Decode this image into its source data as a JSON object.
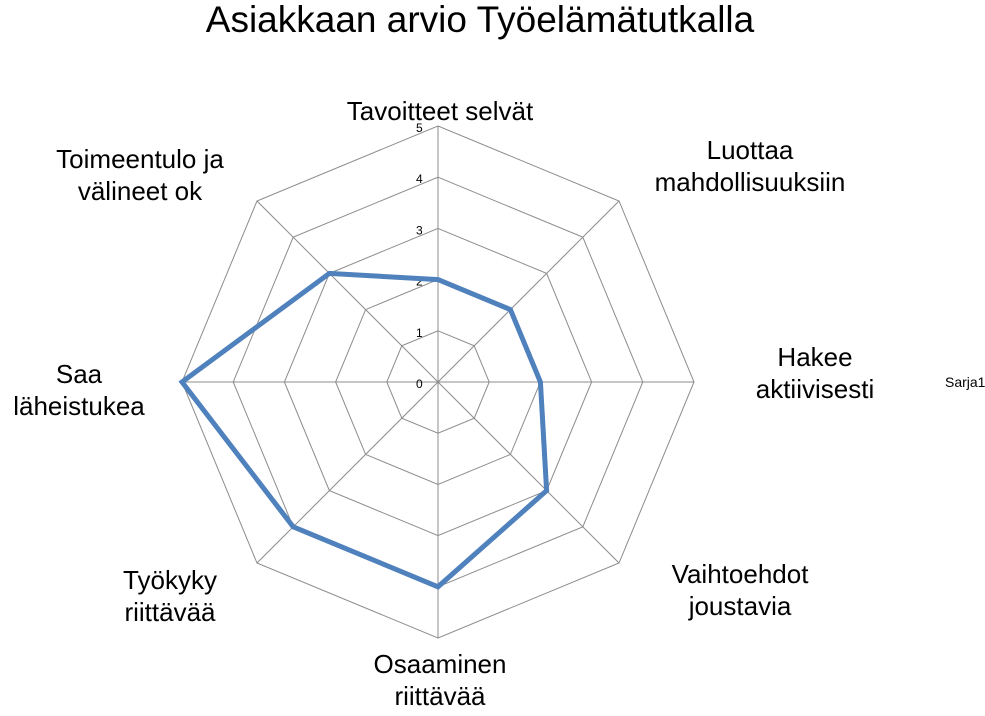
{
  "chart_data": {
    "type": "radar",
    "title": "Asiakkaan arvio Työelämätutkalla",
    "categories": [
      "Tavoitteet selvät",
      "Luottaa mahdollisuuksiin",
      "Hakee aktiivisesti",
      "Vaihtoehdot joustavia",
      "Osaaminen riittävää",
      "Työkyky riittävää",
      "Saa läheistukea",
      "Toimeentulo ja välineet ok"
    ],
    "series": [
      {
        "name": "Sarja1",
        "values": [
          2,
          2,
          2,
          3,
          4,
          4,
          5,
          3
        ],
        "color": "#4F81BD"
      }
    ],
    "rlim": [
      0,
      5
    ],
    "ticks": [
      "0",
      "1",
      "2",
      "3",
      "4",
      "5"
    ],
    "legend": "right",
    "grid": true
  }
}
